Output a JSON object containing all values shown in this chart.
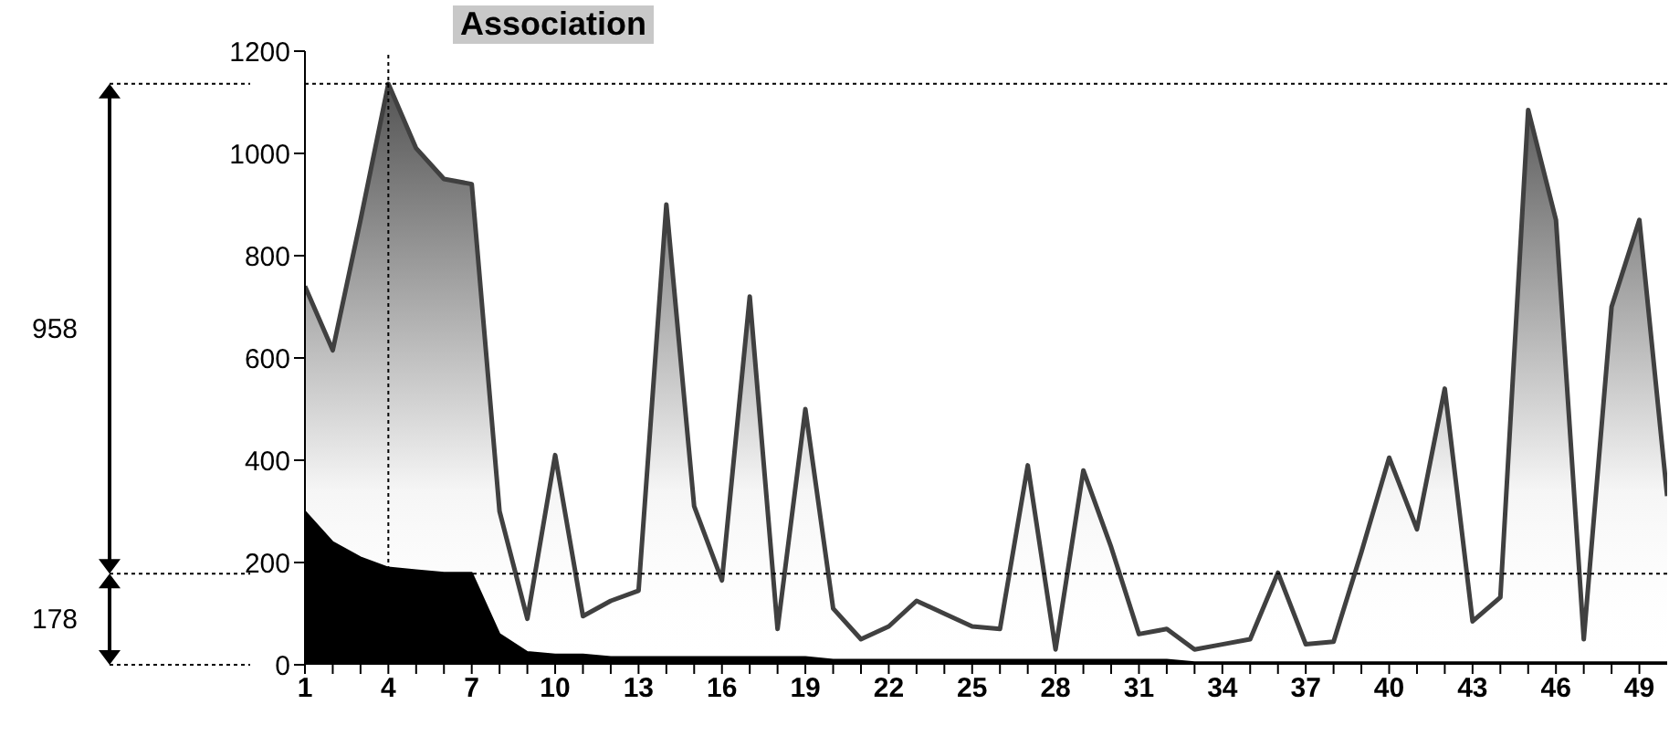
{
  "chart_data": {
    "type": "area",
    "title": "Association",
    "x": [
      1,
      2,
      3,
      4,
      5,
      6,
      7,
      8,
      9,
      10,
      11,
      12,
      13,
      14,
      15,
      16,
      17,
      18,
      19,
      20,
      21,
      22,
      23,
      24,
      25,
      26,
      27,
      28,
      29,
      30,
      31,
      32,
      33,
      34,
      35,
      36,
      37,
      38,
      39,
      40,
      41,
      42,
      43,
      44,
      45,
      46,
      47,
      48,
      49,
      50
    ],
    "series": [
      {
        "color": "#404040",
        "values": [
          740,
          615,
          870,
          1136,
          1010,
          950,
          940,
          300,
          90,
          410,
          95,
          125,
          145,
          900,
          310,
          165,
          720,
          70,
          500,
          110,
          50,
          75,
          125,
          100,
          75,
          70,
          390,
          30,
          380,
          230,
          60,
          70,
          30,
          40,
          50,
          180,
          40,
          45,
          220,
          405,
          265,
          540,
          85,
          132,
          1085,
          870,
          50,
          700,
          870,
          330
        ]
      },
      {
        "color": "#000000",
        "values": [
          300,
          240,
          210,
          190,
          185,
          180,
          180,
          60,
          25,
          20,
          20,
          15,
          15,
          15,
          15,
          15,
          15,
          15,
          15,
          10,
          10,
          10,
          10,
          10,
          10,
          10,
          10,
          10,
          10,
          10,
          10,
          10,
          5,
          5,
          5,
          5,
          5,
          5,
          5,
          5,
          5,
          5,
          5,
          5,
          5,
          5,
          5,
          5,
          5,
          5
        ]
      }
    ],
    "xlim": [
      1,
      50
    ],
    "xticks": [
      1,
      {
        "value": 2,
        "label": null
      },
      {
        "value": 3,
        "label": null
      },
      4,
      {
        "value": 5,
        "label": null
      },
      {
        "value": 6,
        "label": null
      },
      7,
      {
        "value": 8,
        "label": null
      },
      {
        "value": 9,
        "label": null
      },
      10,
      {
        "value": 11,
        "label": null
      },
      {
        "value": 12,
        "label": null
      },
      13,
      {
        "value": 14,
        "label": null
      },
      {
        "value": 15,
        "label": null
      },
      16,
      {
        "value": 17,
        "label": null
      },
      {
        "value": 18,
        "label": null
      },
      19,
      {
        "value": 20,
        "label": null
      },
      {
        "value": 21,
        "label": null
      },
      22,
      {
        "value": 23,
        "label": null
      },
      {
        "value": 24,
        "label": null
      },
      25,
      {
        "value": 26,
        "label": null
      },
      {
        "value": 27,
        "label": null
      },
      28,
      {
        "value": 29,
        "label": null
      },
      {
        "value": 30,
        "label": null
      },
      31,
      {
        "value": 32,
        "label": null
      },
      {
        "value": 33,
        "label": null
      },
      34,
      {
        "value": 35,
        "label": null
      },
      {
        "value": 36,
        "label": null
      },
      37,
      {
        "value": 38,
        "label": null
      },
      {
        "value": 39,
        "label": null
      },
      40,
      {
        "value": 41,
        "label": null
      },
      {
        "value": 42,
        "label": null
      },
      43,
      {
        "value": 44,
        "label": null
      },
      {
        "value": 45,
        "label": null
      },
      46,
      {
        "value": 47,
        "label": null
      },
      {
        "value": 48,
        "label": null
      },
      49
    ],
    "ylim": [
      0,
      1200
    ],
    "yticks": [
      0,
      200,
      400,
      600,
      800,
      1000,
      1200
    ],
    "ref_lines": [
      {
        "axis": "y",
        "value": 1136,
        "line_style": "dotted",
        "color": "#000000"
      },
      {
        "axis": "y",
        "value": 178,
        "line_style": "dotted",
        "color": "#000000"
      },
      {
        "axis": "x",
        "value": 4,
        "line_style": "dotted",
        "color": "#000000"
      }
    ],
    "annotations": [
      "958",
      "178"
    ]
  }
}
